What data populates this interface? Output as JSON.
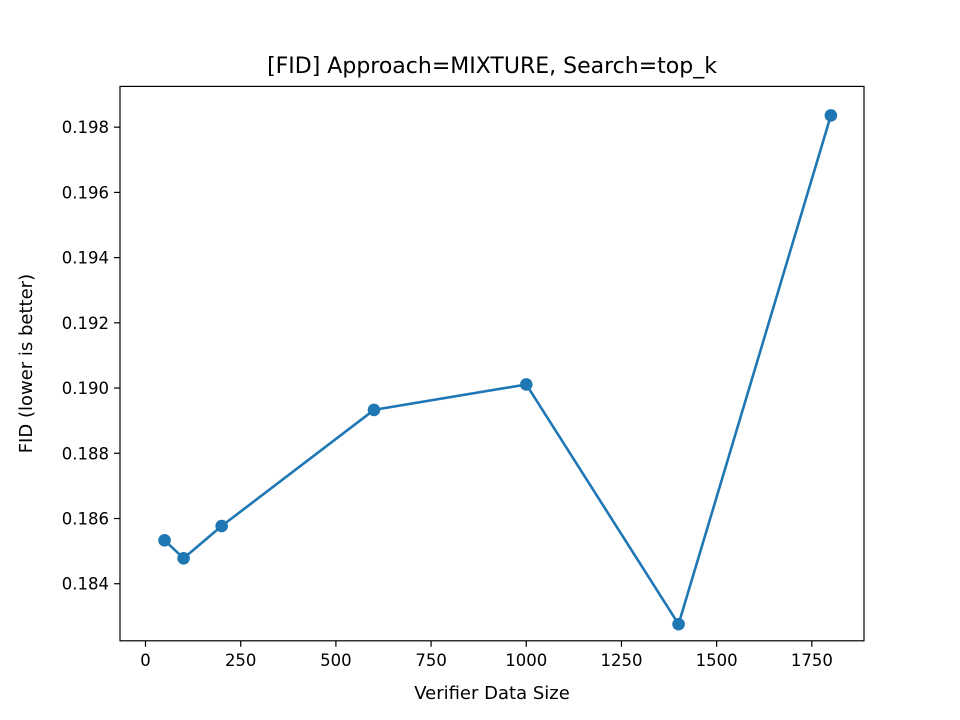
{
  "chart_data": {
    "type": "line",
    "title": "[FID] Approach=MIXTURE, Search=top_k",
    "xlabel": "Verifier Data Size",
    "ylabel": "FID (lower is better)",
    "xlim": [
      -67,
      1887
    ],
    "ylim": [
      0.18225,
      0.19925
    ],
    "xticks": [
      0,
      250,
      500,
      750,
      1000,
      1250,
      1500,
      1750
    ],
    "xtick_labels": [
      "0",
      "250",
      "500",
      "750",
      "1000",
      "1250",
      "1500",
      "1750"
    ],
    "yticks": [
      0.184,
      0.186,
      0.188,
      0.19,
      0.192,
      0.194,
      0.196,
      0.198
    ],
    "ytick_labels": [
      "0.184",
      "0.186",
      "0.188",
      "0.190",
      "0.192",
      "0.194",
      "0.196",
      "0.198"
    ],
    "grid": false,
    "series": [
      {
        "color": "#1f77b4",
        "marker": "circle",
        "x": [
          50,
          100,
          200,
          600,
          1000,
          1400,
          1800
        ],
        "y": [
          0.18533,
          0.18478,
          0.18577,
          0.18933,
          0.19011,
          0.18276,
          0.19836
        ]
      }
    ]
  }
}
